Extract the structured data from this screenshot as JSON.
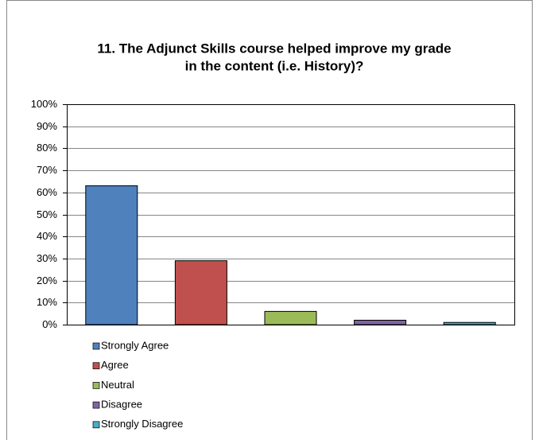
{
  "chart_data": {
    "type": "bar",
    "title": [
      "11. The Adjunct Skills course helped improve my grade",
      "in the content (i.e. History)?"
    ],
    "series": [
      {
        "name": "Strongly Agree",
        "color": "#4f81bd",
        "values": [
          63
        ]
      },
      {
        "name": "Agree",
        "color": "#c0504d",
        "values": [
          29
        ]
      },
      {
        "name": "Neutral",
        "color": "#9bbb59",
        "values": [
          6
        ]
      },
      {
        "name": "Disagree",
        "color": "#8064a2",
        "values": [
          2
        ]
      },
      {
        "name": "Strongly Disagree",
        "color": "#4bacc6",
        "values": [
          1
        ]
      }
    ],
    "ylim": [
      0,
      100
    ],
    "yticks": [
      {
        "value": 0,
        "label": "0%"
      },
      {
        "value": 10,
        "label": "10%"
      },
      {
        "value": 20,
        "label": "20%"
      },
      {
        "value": 30,
        "label": "30%"
      },
      {
        "value": 40,
        "label": "40%"
      },
      {
        "value": 50,
        "label": "50%"
      },
      {
        "value": 60,
        "label": "60%"
      },
      {
        "value": 70,
        "label": "70%"
      },
      {
        "value": 80,
        "label": "80%"
      },
      {
        "value": 90,
        "label": "90%"
      },
      {
        "value": 100,
        "label": "100%"
      }
    ],
    "grid": true,
    "legend": "bottom"
  }
}
